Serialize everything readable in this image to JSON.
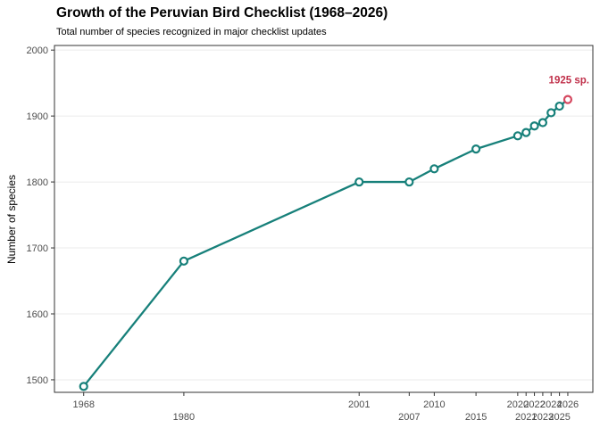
{
  "chart": {
    "title": "Growth of the Peruvian Bird Checklist (1968–2026)",
    "subtitle": "Total number of species recognized in major checklist updates",
    "ylabel": "Number of species"
  },
  "chart_data": {
    "type": "line",
    "title": "Growth of the Peruvian Bird Checklist (1968–2026)",
    "subtitle": "Total number of species recognized in major checklist updates",
    "xlabel": "",
    "ylabel": "Number of species",
    "x": [
      1968,
      1980,
      2001,
      2007,
      2010,
      2015,
      2020,
      2021,
      2022,
      2023,
      2024,
      2025,
      2026
    ],
    "values": [
      1490,
      1680,
      1800,
      1800,
      1820,
      1850,
      1870,
      1875,
      1885,
      1890,
      1905,
      1915,
      1925
    ],
    "xticks": [
      1968,
      1980,
      2001,
      2007,
      2010,
      2015,
      2020,
      2021,
      2022,
      2023,
      2024,
      2025,
      2026
    ],
    "xtick_stagger": true,
    "yticks": [
      1500,
      1600,
      1700,
      1800,
      1900,
      2000
    ],
    "xlim": [
      1964.5,
      2029
    ],
    "ylim": [
      1481,
      2007
    ],
    "grid": "horizontal-major-only",
    "legend": "none",
    "colors": {
      "line": "#17807a",
      "point_stroke": "#17807a",
      "point_fill": "#ffffff",
      "highlight_point": "#d5485f",
      "annotation_text": "#c0304a",
      "gridline": "#ebebeb",
      "panel_border": "#333333",
      "tick": "#333333",
      "tick_label": "#4d4d4d"
    },
    "annotation": {
      "text": "1925 sp.",
      "x": 2026,
      "y": 1925
    }
  }
}
